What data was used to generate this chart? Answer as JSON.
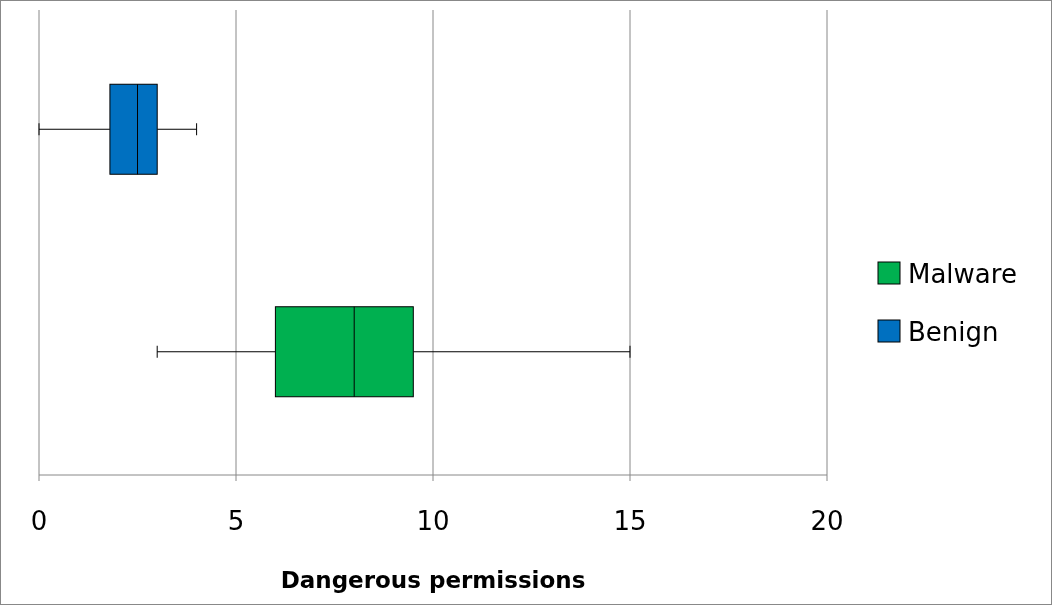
{
  "chart_data": {
    "type": "box",
    "orientation": "horizontal",
    "xlabel": "Dangerous permissions",
    "categories": [
      null,
      null
    ],
    "xlim": [
      0,
      20
    ],
    "xticks": [
      0,
      5,
      10,
      15,
      20
    ],
    "grid": "x",
    "legend": "right",
    "series": [
      {
        "name": "Malware",
        "color": "#00b050",
        "boxes": [
          null,
          {
            "low": 3,
            "q1": 6,
            "median": 8,
            "q3": 9.5,
            "high": 15
          }
        ]
      },
      {
        "name": "Benign",
        "color": "#0070c0",
        "boxes": [
          {
            "low": 0,
            "q1": 1.8,
            "median": 2.5,
            "q3": 3,
            "high": 4
          },
          null
        ]
      }
    ]
  }
}
